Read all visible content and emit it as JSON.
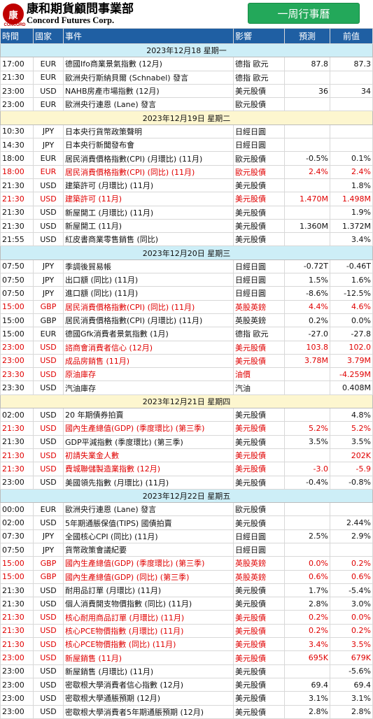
{
  "header": {
    "logo_mark": "康",
    "logo_sub": "CONCORD",
    "logo_cn": "康和期貨顧問事業部",
    "logo_en": "Concord Futures Corp.",
    "title": "一周行事曆"
  },
  "columns": [
    "時間",
    "國家",
    "事件",
    "影響",
    "預測",
    "前值"
  ],
  "colors": {
    "header_bg": "#1f5fa3",
    "title_green": "#23a85a",
    "date_a": "#cdeef7",
    "date_b": "#fdf6cf",
    "highlight": "#e00000"
  },
  "days": [
    {
      "date": "2023年12月18  星期一",
      "rows": [
        {
          "time": "17:00",
          "country": "EUR",
          "event": "德國Ifo商業景氣指數 (12月)",
          "impact": "德指 歐元",
          "forecast": "87.8",
          "previous": "87.3",
          "red": false
        },
        {
          "time": "21:30",
          "country": "EUR",
          "event": "歐洲央行斯納貝爾 (Schnabel) 發言",
          "impact": "德指 歐元",
          "forecast": "",
          "previous": "",
          "red": false
        },
        {
          "time": "23:00",
          "country": "USD",
          "event": "NAHB房產市場指數 (12月)",
          "impact": "美元股債",
          "forecast": "36",
          "previous": "34",
          "red": false
        },
        {
          "time": "23:00",
          "country": "EUR",
          "event": "歐洲央行連恩 (Lane) 發言",
          "impact": "歐元股債",
          "forecast": "",
          "previous": "",
          "red": false
        }
      ]
    },
    {
      "date": "2023年12月19日  星期二",
      "rows": [
        {
          "time": "10:30",
          "country": "JPY",
          "event": "日本央行貨幣政策聲明",
          "impact": "日經日圓",
          "forecast": "",
          "previous": "",
          "red": false
        },
        {
          "time": "14:30",
          "country": "JPY",
          "event": "日本央行新聞發布會",
          "impact": "日經日圓",
          "forecast": "",
          "previous": "",
          "red": false
        },
        {
          "time": "18:00",
          "country": "EUR",
          "event": "居民消費價格指數(CPI) (月環比) (11月)",
          "impact": "歐元股債",
          "forecast": "-0.5%",
          "previous": "0.1%",
          "red": false
        },
        {
          "time": "18:00",
          "country": "EUR",
          "event": "居民消費價格指數(CPI) (同比) (11月)",
          "impact": "歐元股債",
          "forecast": "2.4%",
          "previous": "2.4%",
          "red": true
        },
        {
          "time": "21:30",
          "country": "USD",
          "event": "建築許可 (月環比) (11月)",
          "impact": "美元股債",
          "forecast": "",
          "previous": "1.8%",
          "red": false
        },
        {
          "time": "21:30",
          "country": "USD",
          "event": "建築許可 (11月)",
          "impact": "美元股債",
          "forecast": "1.470M",
          "previous": "1.498M",
          "red": true
        },
        {
          "time": "21:30",
          "country": "USD",
          "event": "新屋開工 (月環比) (11月)",
          "impact": "美元股債",
          "forecast": "",
          "previous": "1.9%",
          "red": false
        },
        {
          "time": "21:30",
          "country": "USD",
          "event": "新屋開工 (11月)",
          "impact": "美元股債",
          "forecast": "1.360M",
          "previous": "1.372M",
          "red": false
        },
        {
          "time": "21:55",
          "country": "USD",
          "event": "紅皮書商業零售銷售 (同比)",
          "impact": "美元股債",
          "forecast": "",
          "previous": "3.4%",
          "red": false
        }
      ]
    },
    {
      "date": "2023年12月20日  星期三",
      "rows": [
        {
          "time": "07:50",
          "country": "JPY",
          "event": "季調後貿易帳",
          "impact": "日經日圓",
          "forecast": "-0.72T",
          "previous": "-0.46T",
          "red": false
        },
        {
          "time": "07:50",
          "country": "JPY",
          "event": "出口額 (同比) (11月)",
          "impact": "日經日圓",
          "forecast": "1.5%",
          "previous": "1.6%",
          "red": false
        },
        {
          "time": "07:50",
          "country": "JPY",
          "event": "進口額 (同比) (11月)",
          "impact": "日經日圓",
          "forecast": "-8.6%",
          "previous": "-12.5%",
          "red": false
        },
        {
          "time": "15:00",
          "country": "GBP",
          "event": "居民消費價格指數(CPI) (同比) (11月)",
          "impact": "英股英鎊",
          "forecast": "4.4%",
          "previous": "4.6%",
          "red": true
        },
        {
          "time": "15:00",
          "country": "GBP",
          "event": "居民消費價格指數(CPI) (月環比) (11月)",
          "impact": "英股英鎊",
          "forecast": "0.2%",
          "previous": "0.0%",
          "red": false
        },
        {
          "time": "15:00",
          "country": "EUR",
          "event": "德國Gfk消費者景氣指數 (1月)",
          "impact": "德指 歐元",
          "forecast": "-27.0",
          "previous": "-27.8",
          "red": false
        },
        {
          "time": "23:00",
          "country": "USD",
          "event": "諮商會消費者信心 (12月)",
          "impact": "美元股債",
          "forecast": "103.8",
          "previous": "102.0",
          "red": true
        },
        {
          "time": "23:00",
          "country": "USD",
          "event": "成品房銷售 (11月)",
          "impact": "美元股債",
          "forecast": "3.78M",
          "previous": "3.79M",
          "red": true
        },
        {
          "time": "23:30",
          "country": "USD",
          "event": "原油庫存",
          "impact": "油價",
          "forecast": "",
          "previous": "-4.259M",
          "red": true
        },
        {
          "time": "23:30",
          "country": "USD",
          "event": "汽油庫存",
          "impact": "汽油",
          "forecast": "",
          "previous": "0.408M",
          "red": false
        }
      ]
    },
    {
      "date": "2023年12月21日  星期四",
      "rows": [
        {
          "time": "02:00",
          "country": "USD",
          "event": "20 年期債券拍賣",
          "impact": "美元股債",
          "forecast": "",
          "previous": "4.8%",
          "red": false
        },
        {
          "time": "21:30",
          "country": "USD",
          "event": "國內生產總值(GDP) (季度環比) (第三季)",
          "impact": "美元股債",
          "forecast": "5.2%",
          "previous": "5.2%",
          "red": true
        },
        {
          "time": "21:30",
          "country": "USD",
          "event": "GDP平減指數 (季度環比) (第三季)",
          "impact": "美元股債",
          "forecast": "3.5%",
          "previous": "3.5%",
          "red": false
        },
        {
          "time": "21:30",
          "country": "USD",
          "event": "初請失業金人數",
          "impact": "美元股債",
          "forecast": "",
          "previous": "202K",
          "red": true
        },
        {
          "time": "21:30",
          "country": "USD",
          "event": "費城聯儲製造業指數 (12月)",
          "impact": "美元股債",
          "forecast": "-3.0",
          "previous": "-5.9",
          "red": true
        },
        {
          "time": "23:00",
          "country": "USD",
          "event": "美國領先指數 (月環比) (11月)",
          "impact": "美元股債",
          "forecast": "-0.4%",
          "previous": "-0.8%",
          "red": false
        }
      ]
    },
    {
      "date": "2023年12月22日  星期五",
      "rows": [
        {
          "time": "00:00",
          "country": "EUR",
          "event": "歐洲央行連恩 (Lane) 發言",
          "impact": "歐元股債",
          "forecast": "",
          "previous": "",
          "red": false
        },
        {
          "time": "02:00",
          "country": "USD",
          "event": "5年期通脹保值(TIPS) 國債拍賣",
          "impact": "美元股債",
          "forecast": "",
          "previous": "2.44%",
          "red": false
        },
        {
          "time": "07:30",
          "country": "JPY",
          "event": "全國核心CPI (同比) (11月)",
          "impact": "日經日圓",
          "forecast": "2.5%",
          "previous": "2.9%",
          "red": false
        },
        {
          "time": "07:50",
          "country": "JPY",
          "event": "貨幣政策會議紀要",
          "impact": "日經日圓",
          "forecast": "",
          "previous": "",
          "red": false
        },
        {
          "time": "15:00",
          "country": "GBP",
          "event": "國內生產總值(GDP) (季度環比) (第三季)",
          "impact": "英股英鎊",
          "forecast": "0.0%",
          "previous": "0.2%",
          "red": true
        },
        {
          "time": "15:00",
          "country": "GBP",
          "event": "國內生產總值(GDP) (同比) (第三季)",
          "impact": "英股英鎊",
          "forecast": "0.6%",
          "previous": "0.6%",
          "red": true
        },
        {
          "time": "21:30",
          "country": "USD",
          "event": "耐用品訂單 (月環比) (11月)",
          "impact": "美元股債",
          "forecast": "1.7%",
          "previous": "-5.4%",
          "red": false
        },
        {
          "time": "21:30",
          "country": "USD",
          "event": "個人消費開支物價指數 (同比) (11月)",
          "impact": "美元股債",
          "forecast": "2.8%",
          "previous": "3.0%",
          "red": false
        },
        {
          "time": "21:30",
          "country": "USD",
          "event": "核心耐用商品訂單 (月環比) (11月)",
          "impact": "美元股債",
          "forecast": "0.2%",
          "previous": "0.0%",
          "red": true
        },
        {
          "time": "21:30",
          "country": "USD",
          "event": "核心PCE物價指數 (月環比) (11月)",
          "impact": "美元股債",
          "forecast": "0.2%",
          "previous": "0.2%",
          "red": true
        },
        {
          "time": "21:30",
          "country": "USD",
          "event": "核心PCE物價指數 (同比) (11月)",
          "impact": "美元股債",
          "forecast": "3.4%",
          "previous": "3.5%",
          "red": true
        },
        {
          "time": "23:00",
          "country": "USD",
          "event": "新屋銷售 (11月)",
          "impact": "美元股債",
          "forecast": "695K",
          "previous": "679K",
          "red": true
        },
        {
          "time": "23:00",
          "country": "USD",
          "event": "新屋銷售 (月環比) (11月)",
          "impact": "美元股債",
          "forecast": "",
          "previous": "-5.6%",
          "red": false
        },
        {
          "time": "23:00",
          "country": "USD",
          "event": "密歇根大學消費者信心指數 (12月)",
          "impact": "美元股債",
          "forecast": "69.4",
          "previous": "69.4",
          "red": false
        },
        {
          "time": "23:00",
          "country": "USD",
          "event": "密歇根大學通脹預期 (12月)",
          "impact": "美元股債",
          "forecast": "3.1%",
          "previous": "3.1%",
          "red": false
        },
        {
          "time": "23:00",
          "country": "USD",
          "event": "密歇根大學消費者5年期通脹預期 (12月)",
          "impact": "美元股債",
          "forecast": "2.8%",
          "previous": "2.8%",
          "red": false
        }
      ]
    }
  ]
}
